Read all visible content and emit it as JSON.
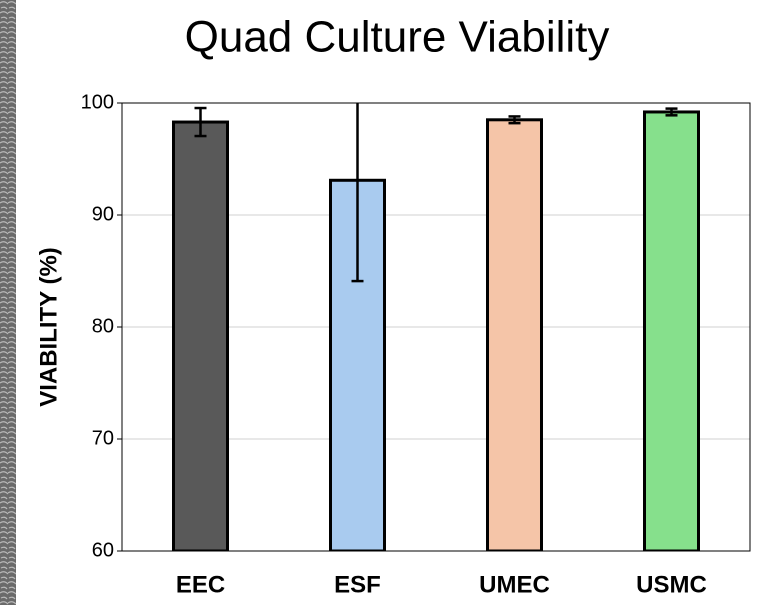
{
  "chart_data": {
    "type": "bar",
    "title": "Quad Culture Viability",
    "y_label": "VIABILITY (%)",
    "categories": [
      "EEC",
      "ESF",
      "UMEC",
      "USMC"
    ],
    "values": [
      98.3,
      93.1,
      98.5,
      99.2
    ],
    "errors": [
      1.25,
      9.0,
      0.3,
      0.3
    ],
    "colors": [
      "#595959",
      "#a9cbef",
      "#f5c5a8",
      "#86e08c"
    ],
    "ylim": [
      60,
      100
    ],
    "yticks": [
      60,
      70,
      80,
      90,
      100
    ],
    "grid": true
  }
}
